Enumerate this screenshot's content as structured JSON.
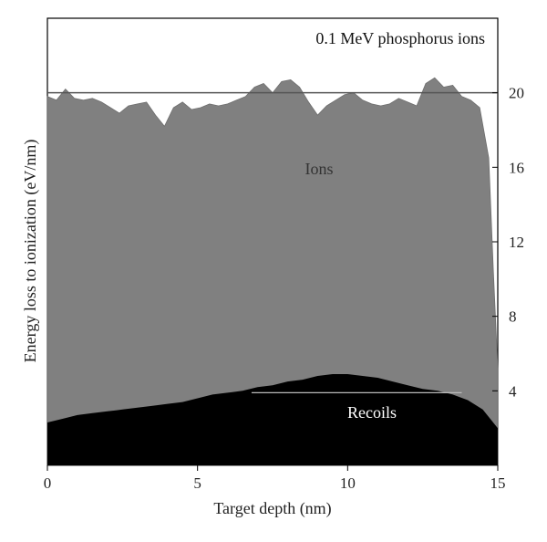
{
  "chart_data": {
    "type": "area",
    "title": "0.1 MeV phosphorus ions",
    "xlabel": "Target depth (nm)",
    "ylabel": "Energy loss to ionization (eV/nm)",
    "xlim": [
      0,
      15
    ],
    "ylim": [
      0,
      24
    ],
    "x_ticks": [
      "0",
      "5",
      "10",
      "15"
    ],
    "y_ticks": [
      "4",
      "8",
      "12",
      "16",
      "20"
    ],
    "y_tick_side": "right",
    "reference_lines": [
      {
        "y": 20,
        "x_range": [
          0,
          15
        ]
      },
      {
        "y": 3.9,
        "x_range": [
          6.8,
          13.8
        ]
      }
    ],
    "colors": {
      "ions": "#808080",
      "recoils": "#000000",
      "ions_text": "#333333",
      "recoils_text": "#ffffff"
    },
    "series": [
      {
        "name": "Ions",
        "stacked_on": "Recoils",
        "x": [
          0,
          0.3,
          0.6,
          0.9,
          1.2,
          1.5,
          1.8,
          2.1,
          2.4,
          2.7,
          3.0,
          3.3,
          3.6,
          3.9,
          4.2,
          4.5,
          4.8,
          5.1,
          5.4,
          5.7,
          6.0,
          6.3,
          6.6,
          6.9,
          7.2,
          7.5,
          7.8,
          8.1,
          8.4,
          8.7,
          9.0,
          9.3,
          9.6,
          9.9,
          10.2,
          10.5,
          10.8,
          11.1,
          11.4,
          11.7,
          12.0,
          12.3,
          12.6,
          12.9,
          13.2,
          13.5,
          13.8,
          14.1,
          14.4,
          14.7,
          14.85,
          15.0
        ],
        "top": [
          19.8,
          19.6,
          20.2,
          19.7,
          19.6,
          19.7,
          19.5,
          19.2,
          18.9,
          19.3,
          19.4,
          19.5,
          18.8,
          18.2,
          19.2,
          19.5,
          19.1,
          19.2,
          19.4,
          19.3,
          19.4,
          19.6,
          19.8,
          20.3,
          20.5,
          20.0,
          20.6,
          20.7,
          20.3,
          19.5,
          18.8,
          19.3,
          19.6,
          19.9,
          20.0,
          19.6,
          19.4,
          19.3,
          19.4,
          19.7,
          19.5,
          19.3,
          20.5,
          20.8,
          20.3,
          20.4,
          19.8,
          19.6,
          19.2,
          16.5,
          10.5,
          5.2
        ]
      },
      {
        "name": "Recoils",
        "x": [
          0,
          0.5,
          1.0,
          1.5,
          2.0,
          2.5,
          3.0,
          3.5,
          4.0,
          4.5,
          5.0,
          5.5,
          6.0,
          6.5,
          7.0,
          7.5,
          8.0,
          8.5,
          9.0,
          9.5,
          10.0,
          10.5,
          11.0,
          11.5,
          12.0,
          12.5,
          13.0,
          13.5,
          14.0,
          14.5,
          15.0
        ],
        "values": [
          2.3,
          2.5,
          2.7,
          2.8,
          2.9,
          3.0,
          3.1,
          3.2,
          3.3,
          3.4,
          3.6,
          3.8,
          3.9,
          4.0,
          4.2,
          4.3,
          4.5,
          4.6,
          4.8,
          4.9,
          4.9,
          4.8,
          4.7,
          4.5,
          4.3,
          4.1,
          4.0,
          3.8,
          3.5,
          3.0,
          2.0
        ]
      }
    ],
    "annotations": [
      "Ions",
      "Recoils"
    ],
    "grid": false,
    "legend": "none"
  }
}
